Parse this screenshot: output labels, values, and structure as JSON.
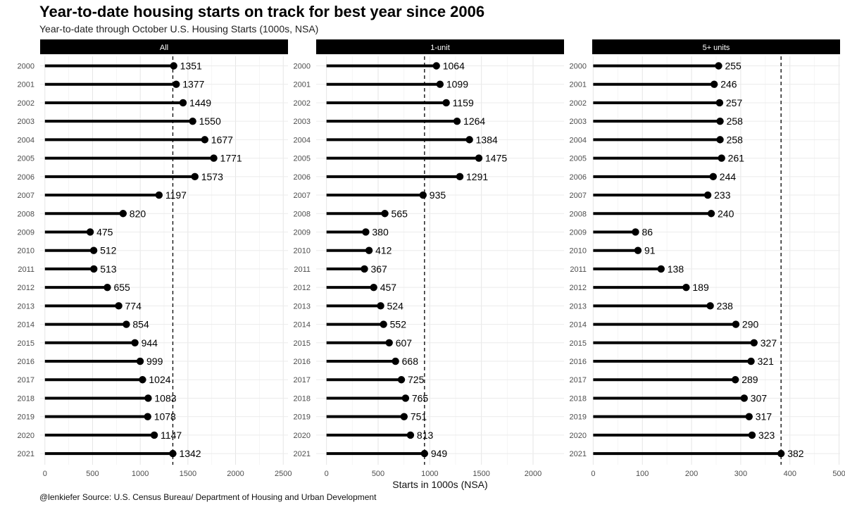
{
  "title": "Year-to-date housing starts on track for best year since 2006",
  "subtitle": "Year-to-date through October U.S. Housing Starts (1000s, NSA)",
  "caption": "@lenkiefer Source: U.S. Census Bureau/ Department of Housing and Urban Development",
  "chart_data": {
    "type": "bar",
    "variant": "lollipop, horizontal, faceted",
    "title": "Year-to-date housing starts on track for best year since 2006",
    "subtitle": "Year-to-date through October U.S. Housing Starts (1000s, NSA)",
    "xlabel": "Starts in 1000s (NSA)",
    "ylabel": "",
    "grid": true,
    "legend": "none",
    "categories": [
      "2000",
      "2001",
      "2002",
      "2003",
      "2004",
      "2005",
      "2006",
      "2007",
      "2008",
      "2009",
      "2010",
      "2011",
      "2012",
      "2013",
      "2014",
      "2015",
      "2016",
      "2017",
      "2018",
      "2019",
      "2020",
      "2021"
    ],
    "facets": [
      {
        "name": "All",
        "xlim": [
          -50,
          2550
        ],
        "xticks": [
          0,
          500,
          1000,
          1500,
          2000,
          2500
        ],
        "reference_line": 1342,
        "values": [
          1351,
          1377,
          1449,
          1550,
          1677,
          1771,
          1573,
          1197,
          820,
          475,
          512,
          513,
          655,
          774,
          854,
          944,
          999,
          1024,
          1083,
          1078,
          1147,
          1342
        ]
      },
      {
        "name": "1-unit",
        "xlim": [
          -100,
          2300
        ],
        "xticks": [
          0,
          500,
          1000,
          1500,
          2000
        ],
        "reference_line": 949,
        "values": [
          1064,
          1099,
          1159,
          1264,
          1384,
          1475,
          1291,
          935,
          565,
          380,
          412,
          367,
          457,
          524,
          552,
          607,
          668,
          725,
          765,
          751,
          813,
          949
        ]
      },
      {
        "name": "5+ units",
        "xlim": [
          -2,
          502
        ],
        "xticks": [
          0,
          100,
          200,
          300,
          400,
          500
        ],
        "reference_line": 382,
        "values": [
          255,
          246,
          257,
          258,
          258,
          261,
          244,
          233,
          240,
          86,
          91,
          138,
          189,
          238,
          290,
          327,
          321,
          289,
          307,
          317,
          323,
          382
        ]
      }
    ]
  }
}
